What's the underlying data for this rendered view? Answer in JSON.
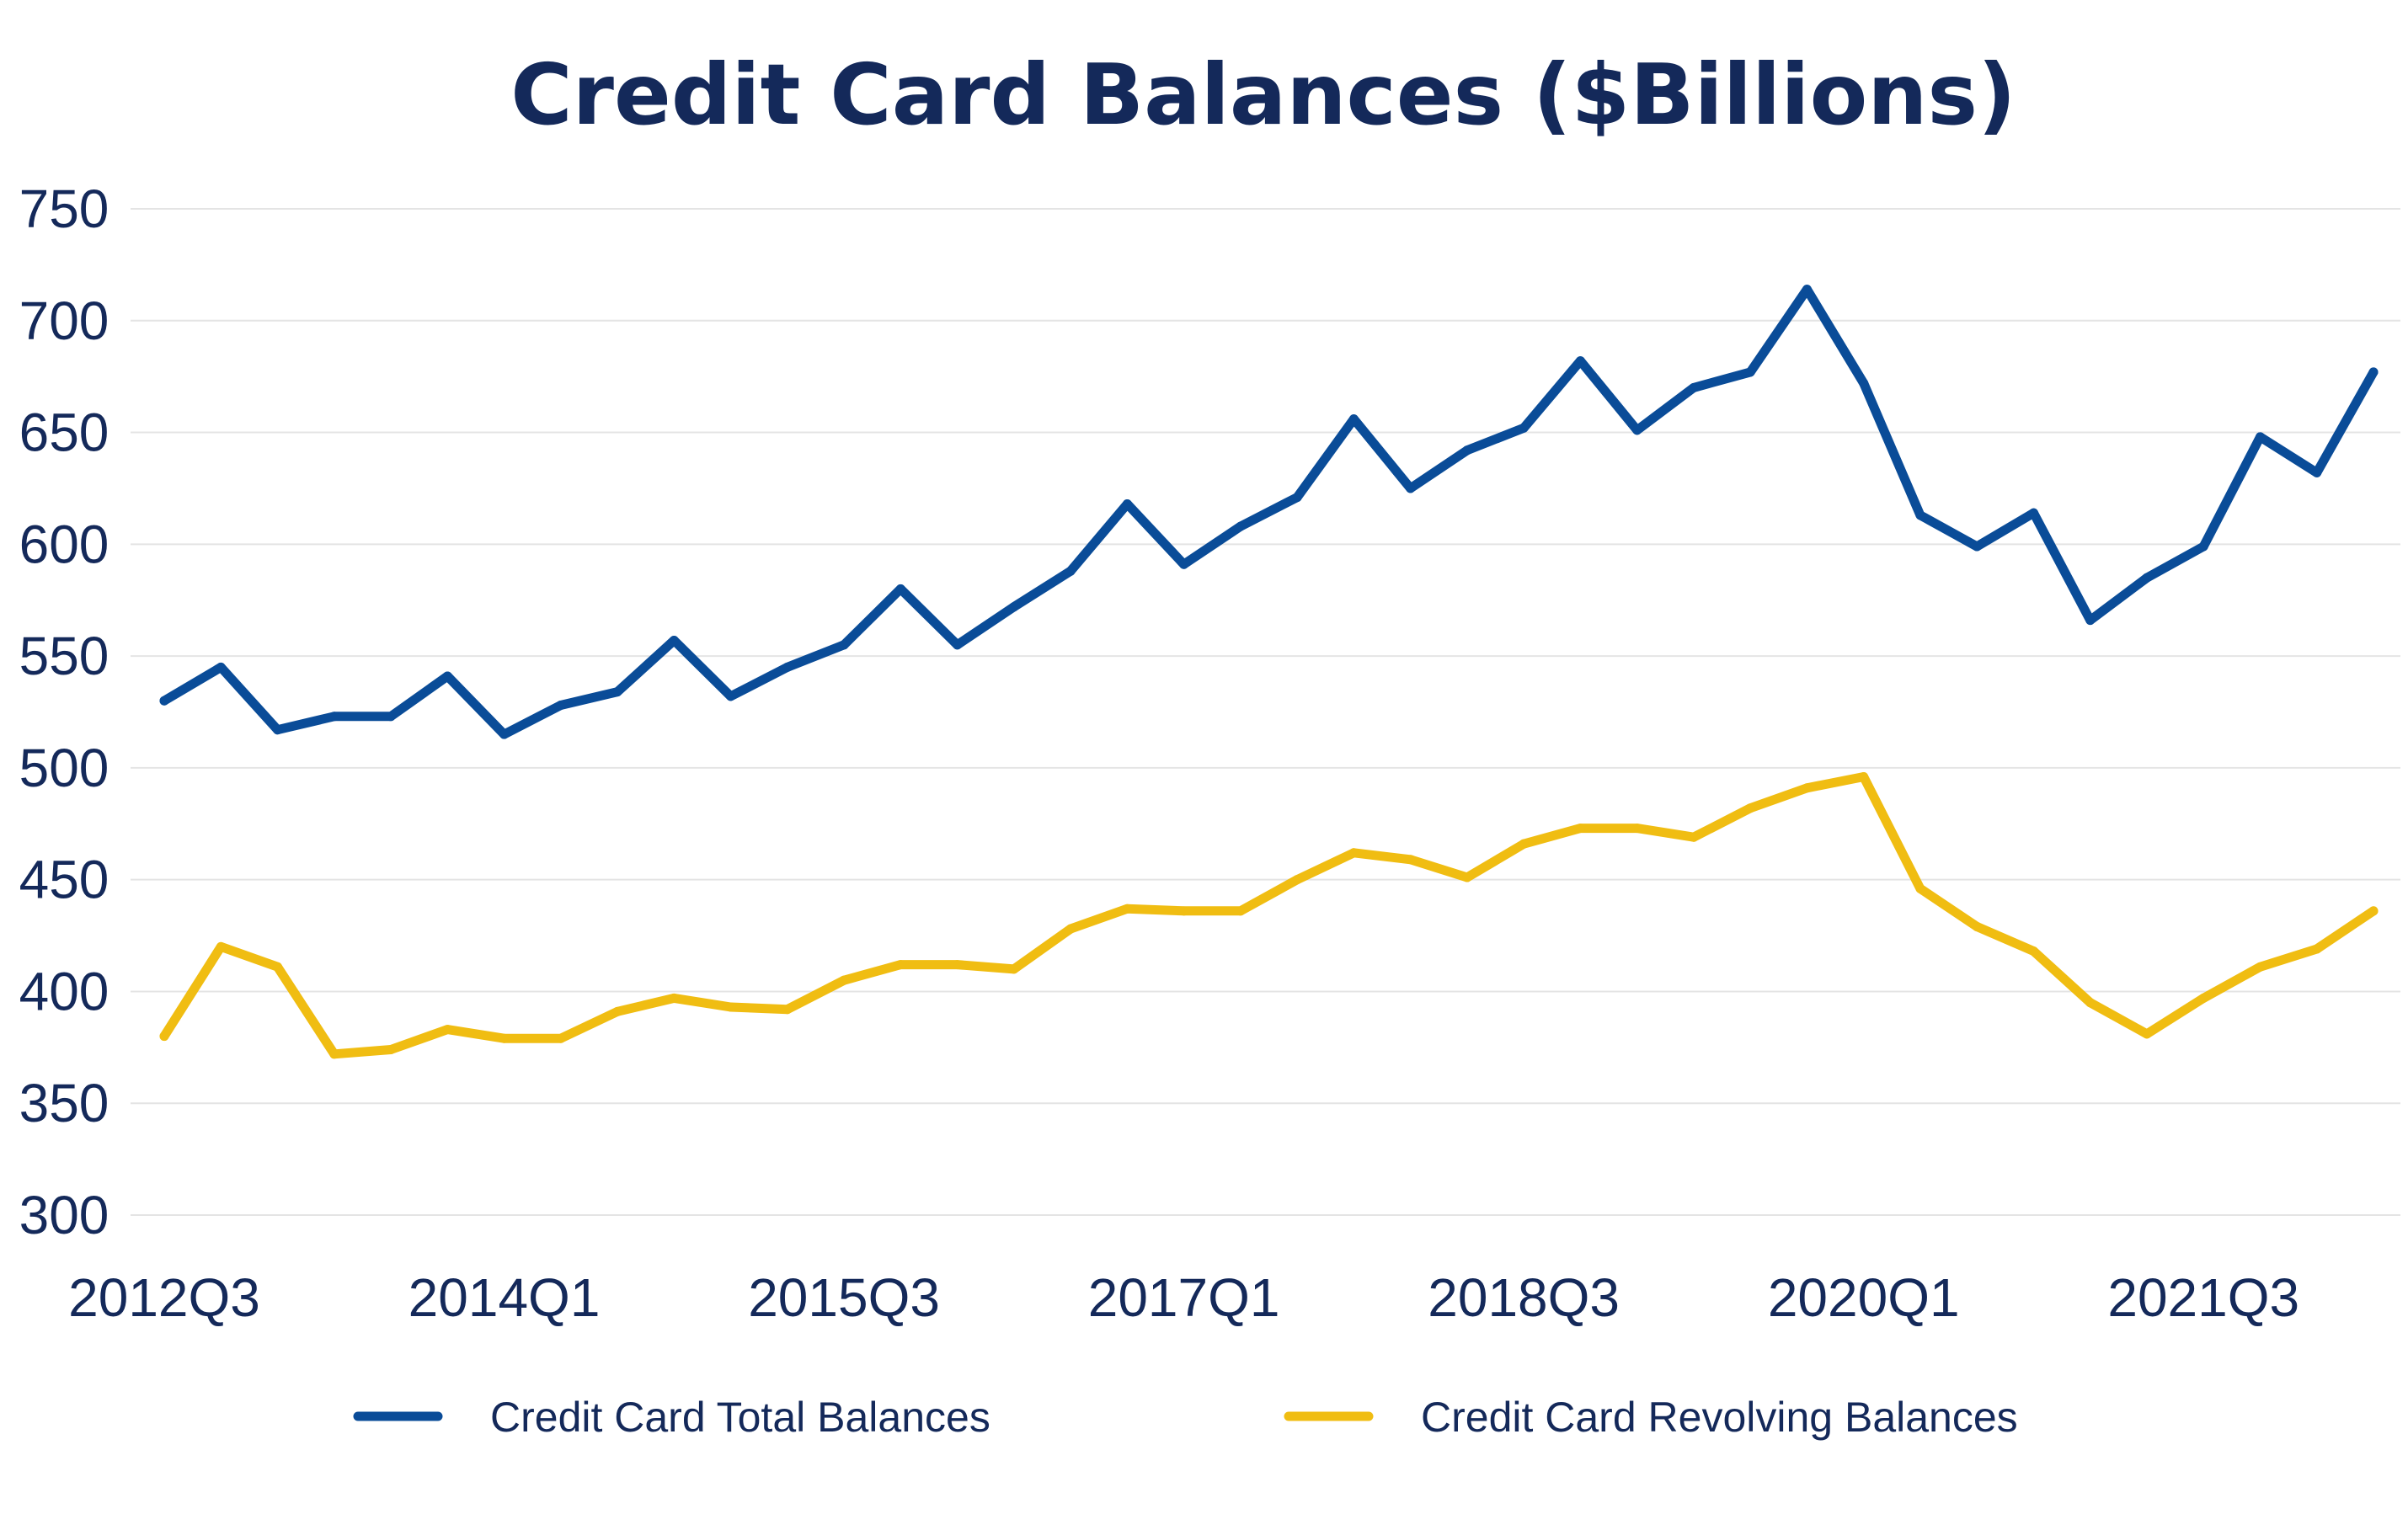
{
  "colors": {
    "text": "#14295a",
    "grid": "#e4e4e4",
    "total": "#0a4c98",
    "revolving": "#f0bd12"
  },
  "chart_data": {
    "type": "line",
    "title": "Credit Card Balances ($Billions)",
    "xlabel": "",
    "ylabel": "",
    "ylim": [
      300,
      750
    ],
    "yticks": [
      750,
      700,
      650,
      600,
      550,
      500,
      450,
      400,
      350,
      300
    ],
    "grid": true,
    "legend_position": "bottom",
    "x": [
      "2012Q3",
      "2012Q4",
      "2013Q1",
      "2013Q2",
      "2013Q3",
      "2013Q4",
      "2014Q1",
      "2014Q2",
      "2014Q3",
      "2014Q4",
      "2015Q1",
      "2015Q2",
      "2015Q3",
      "2015Q4",
      "2016Q1",
      "2016Q2",
      "2016Q3",
      "2016Q4",
      "2017Q1",
      "2017Q2",
      "2017Q3",
      "2017Q4",
      "2018Q1",
      "2018Q2",
      "2018Q3",
      "2018Q4",
      "2019Q1",
      "2019Q2",
      "2019Q3",
      "2019Q4",
      "2020Q1",
      "2020Q2",
      "2020Q3",
      "2020Q4",
      "2021Q1",
      "2021Q2",
      "2021Q3",
      "2021Q4",
      "2022Q1",
      "2022Q2"
    ],
    "xtick_labels": [
      "2012Q3",
      "2014Q1",
      "2015Q3",
      "2017Q1",
      "2018Q3",
      "2020Q1",
      "2021Q3"
    ],
    "series": [
      {
        "name": "Credit Card Total Balances",
        "color": "#0a4c98",
        "values": [
          530,
          545,
          517,
          523,
          523,
          541,
          515,
          528,
          534,
          557,
          532,
          545,
          555,
          580,
          555,
          572,
          588,
          618,
          591,
          608,
          621,
          656,
          625,
          642,
          652,
          682,
          651,
          670,
          677,
          714,
          672,
          613,
          599,
          614,
          566,
          585,
          599,
          648,
          632,
          677
        ]
      },
      {
        "name": "Credit Card Revolving Balances",
        "color": "#f0bd12",
        "values": [
          380,
          420,
          411,
          372,
          374,
          383,
          379,
          379,
          391,
          397,
          393,
          392,
          405,
          412,
          412,
          410,
          428,
          437,
          436,
          436,
          450,
          462,
          459,
          451,
          466,
          473,
          473,
          469,
          482,
          491,
          496,
          446,
          429,
          418,
          395,
          381,
          397,
          411,
          419,
          436
        ]
      }
    ]
  }
}
